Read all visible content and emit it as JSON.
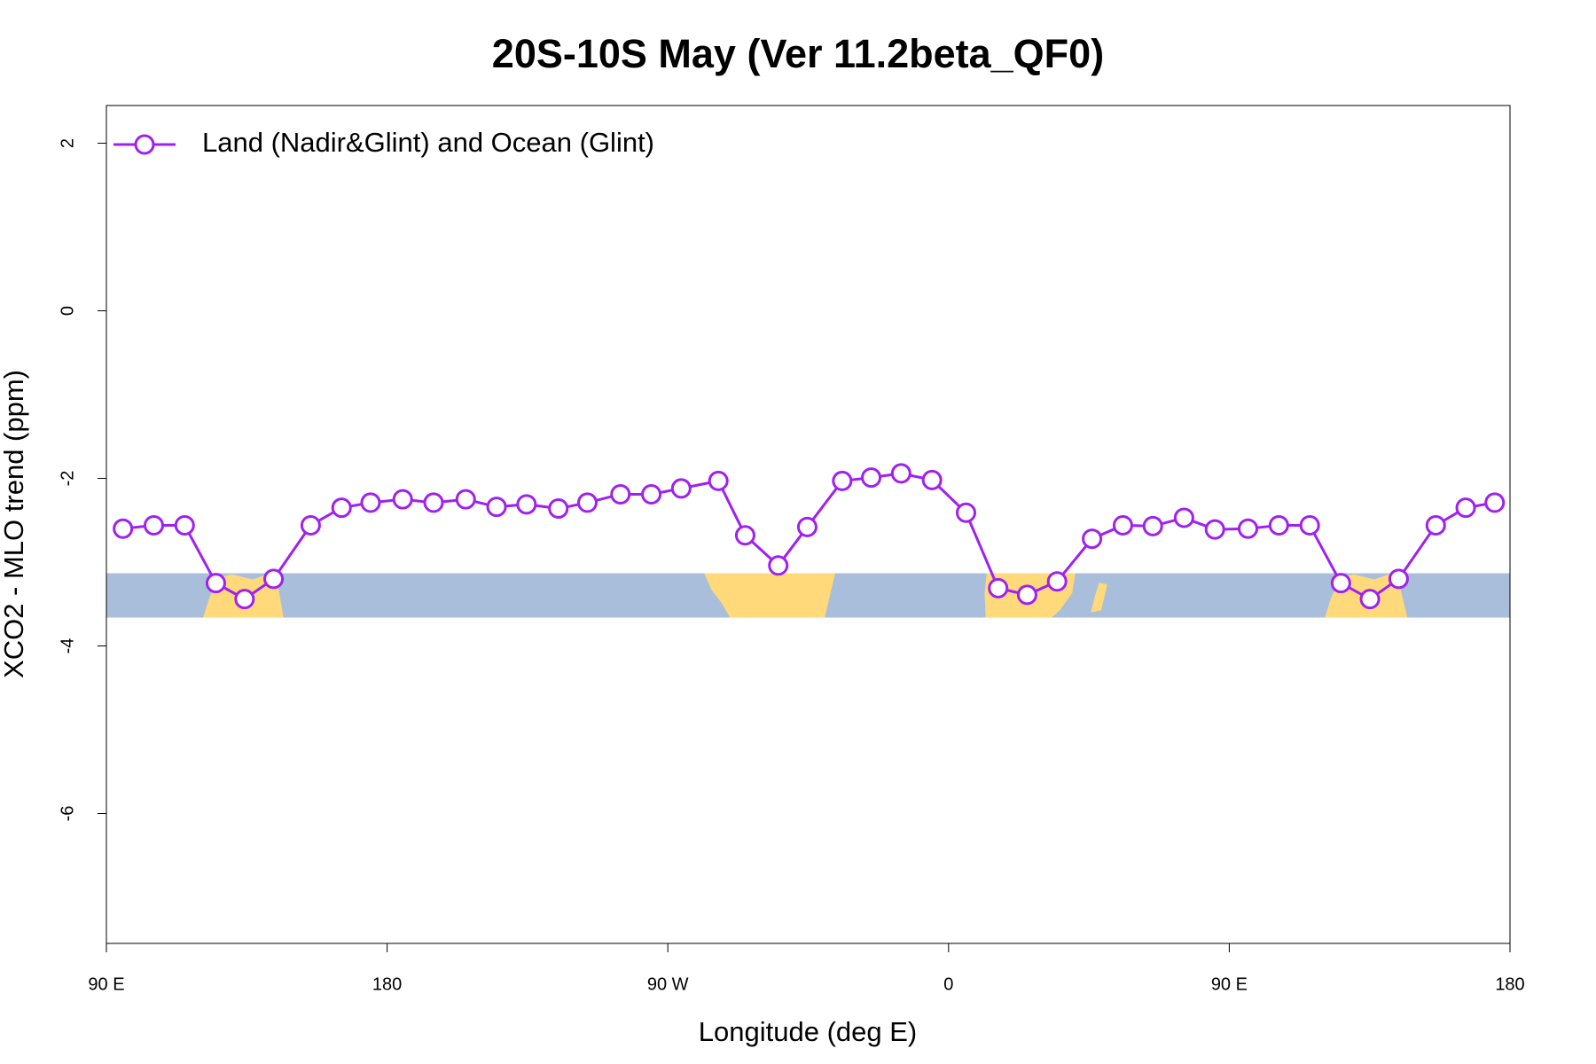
{
  "chart_data": {
    "type": "line",
    "title": "20S-10S May (Ver 11.2beta_QF0)",
    "xlabel": "Longitude (deg E)",
    "ylabel": "XCO2 - MLO trend (ppm)",
    "xlim": [
      90,
      540
    ],
    "ylim": [
      -7.55,
      2.45
    ],
    "xticks": [
      {
        "value": 90,
        "label": "90 E"
      },
      {
        "value": 180,
        "label": "180"
      },
      {
        "value": 270,
        "label": "90 W"
      },
      {
        "value": 360,
        "label": "0"
      },
      {
        "value": 450,
        "label": "90 E"
      },
      {
        "value": 540,
        "label": "180"
      }
    ],
    "yticks": [
      -6,
      -4,
      -2,
      0,
      2
    ],
    "legend": "top-left",
    "grid": false,
    "x": [
      95.3,
      105.2,
      115.1,
      125.1,
      134.3,
      143.6,
      155.5,
      165.4,
      174.7,
      185.0,
      194.9,
      205.2,
      215.1,
      224.7,
      234.9,
      244.2,
      254.8,
      264.7,
      274.3,
      286.2,
      294.8,
      305.4,
      314.7,
      325.9,
      335.2,
      344.8,
      354.7,
      365.6,
      375.9,
      385.2,
      394.8,
      406.0,
      415.9,
      425.5,
      435.5,
      445.4,
      456.0,
      465.9,
      475.8,
      485.8,
      495.1,
      504.3,
      516.2,
      525.8,
      535.1
    ],
    "series": [
      {
        "name": "Land (Nadir&Glint) and Ocean (Glint)",
        "color": "#a020f0",
        "values": [
          -2.6,
          -2.56,
          -2.56,
          -3.25,
          -3.44,
          -3.2,
          -2.56,
          -2.35,
          -2.29,
          -2.25,
          -2.29,
          -2.25,
          -2.34,
          -2.31,
          -2.36,
          -2.29,
          -2.19,
          -2.19,
          -2.12,
          -2.03,
          -2.68,
          -3.04,
          -2.58,
          -2.03,
          -1.99,
          -1.94,
          -2.02,
          -2.41,
          -3.31,
          -3.39,
          -3.23,
          -2.72,
          -2.56,
          -2.57,
          -2.47,
          -2.61,
          -2.6,
          -2.56,
          -2.56,
          -3.25,
          -3.44,
          -3.2,
          -2.56,
          -2.35,
          -2.29
        ]
      }
    ]
  }
}
